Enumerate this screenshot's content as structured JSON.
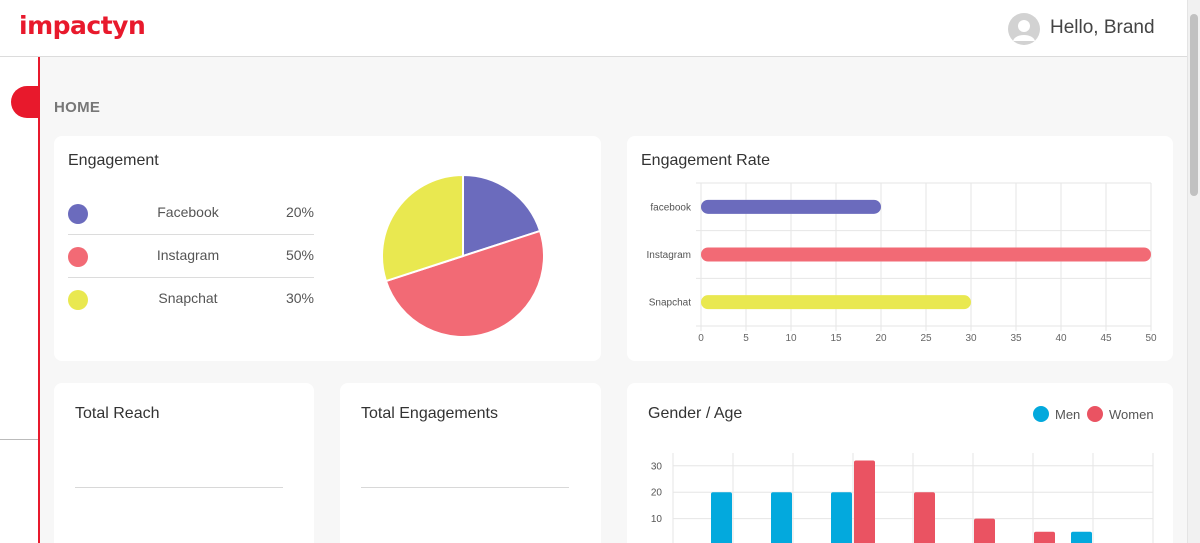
{
  "header": {
    "logo": "impactyn",
    "greeting": "Hello, Brand",
    "avatar_icon": "user-avatar-icon"
  },
  "page": {
    "title": "HOME"
  },
  "engagement": {
    "title": "Engagement",
    "items": [
      {
        "name": "Facebook",
        "pct": "20%",
        "value": 20,
        "color": "#6b6bbd"
      },
      {
        "name": "Instagram",
        "pct": "50%",
        "value": 50,
        "color": "#f26a75"
      },
      {
        "name": "Snapchat",
        "pct": "30%",
        "value": 30,
        "color": "#e9e850"
      }
    ]
  },
  "engagement_rate": {
    "title": "Engagement Rate"
  },
  "total_reach": {
    "title": "Total Reach"
  },
  "total_engagements": {
    "title": "Total Engagements"
  },
  "gender_age": {
    "title": "Gender / Age",
    "legend_men": "Men",
    "legend_women": "Women"
  },
  "chart_data": [
    {
      "type": "pie",
      "categories": [
        "Facebook",
        "Instagram",
        "Snapchat"
      ],
      "values": [
        20,
        50,
        30
      ],
      "colors": [
        "#6b6bbd",
        "#f26a75",
        "#e9e850"
      ]
    },
    {
      "type": "bar",
      "orientation": "horizontal",
      "categories": [
        "facebook",
        "Instagram",
        "Snapchat"
      ],
      "values": [
        20,
        50,
        30
      ],
      "colors": [
        "#6b6bbd",
        "#f26a75",
        "#e9e850"
      ],
      "xlim": [
        0,
        50
      ],
      "xticks": [
        0,
        5,
        10,
        15,
        20,
        25,
        30,
        35,
        40,
        45,
        50
      ],
      "grid": true
    },
    {
      "type": "bar",
      "series": [
        {
          "name": "Men",
          "color": "#03a9dd",
          "values": [
            20,
            20,
            20,
            null,
            null,
            null,
            5
          ]
        },
        {
          "name": "Women",
          "color": "#ea5362",
          "values": [
            null,
            null,
            32,
            20,
            10,
            5,
            null
          ]
        }
      ],
      "yticks": [
        10,
        20,
        30
      ],
      "ylim": [
        0,
        35
      ],
      "legend": "top-right",
      "grid": true
    }
  ]
}
